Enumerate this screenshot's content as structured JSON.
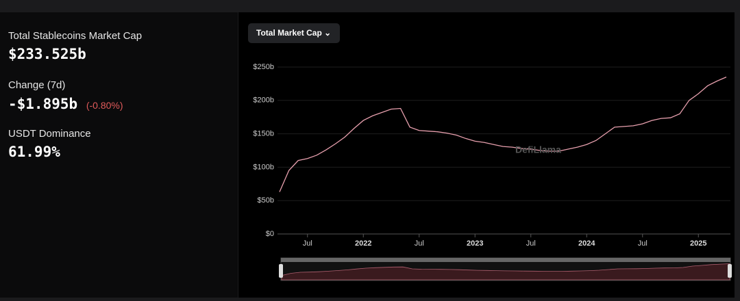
{
  "stats": {
    "market_cap_label": "Total Stablecoins Market Cap",
    "market_cap_value": "$233.525b",
    "change_label": "Change (7d)",
    "change_value": "-$1.895b",
    "change_percent": "(-0.80%)",
    "dominance_label": "USDT Dominance",
    "dominance_value": "61.99%"
  },
  "selector": "Total Market Cap",
  "watermark": "DefiLlama",
  "chart_data": {
    "type": "line",
    "color": "#e8a0ae",
    "x": [
      "2021-04",
      "2021-05",
      "2021-06",
      "2021-07",
      "2021-08",
      "2021-09",
      "2021-10",
      "2021-11",
      "2021-12",
      "2022-01",
      "2022-02",
      "2022-03",
      "2022-04",
      "2022-05",
      "2022-06",
      "2022-07",
      "2022-08",
      "2022-09",
      "2022-10",
      "2022-11",
      "2022-12",
      "2023-01",
      "2023-02",
      "2023-03",
      "2023-04",
      "2023-05",
      "2023-06",
      "2023-07",
      "2023-08",
      "2023-09",
      "2023-10",
      "2023-11",
      "2023-12",
      "2024-01",
      "2024-02",
      "2024-03",
      "2024-04",
      "2024-05",
      "2024-06",
      "2024-07",
      "2024-08",
      "2024-09",
      "2024-10",
      "2024-11",
      "2024-12",
      "2025-01",
      "2025-02",
      "2025-03",
      "2025-04"
    ],
    "values": [
      63,
      95,
      110,
      113,
      118,
      126,
      135,
      145,
      158,
      170,
      177,
      182,
      187,
      188,
      160,
      155,
      154,
      153,
      151,
      148,
      143,
      139,
      137,
      134,
      131,
      130,
      128,
      127,
      125,
      124,
      124,
      127,
      130,
      134,
      140,
      150,
      160,
      161,
      162,
      165,
      170,
      173,
      174,
      180,
      200,
      210,
      222,
      229,
      235
    ],
    "xlim": [
      "2021-04",
      "2025-04"
    ],
    "xticks": [
      {
        "value": "2021-07",
        "label": "Jul"
      },
      "2022",
      {
        "value": "2022-07",
        "label": "Jul"
      },
      "2023",
      {
        "value": "2023-07",
        "label": "Jul"
      },
      "2024",
      {
        "value": "2024-07",
        "label": "Jul"
      },
      "2025"
    ],
    "ylim": [
      0,
      250
    ],
    "yticks": [
      {
        "value": 0,
        "label": "$0"
      },
      {
        "value": 50,
        "label": "$50b"
      },
      {
        "value": 100,
        "label": "$100b"
      },
      {
        "value": 150,
        "label": "$150b"
      },
      {
        "value": 200,
        "label": "$200b"
      },
      {
        "value": 250,
        "label": "$250b"
      }
    ],
    "grid": true
  }
}
